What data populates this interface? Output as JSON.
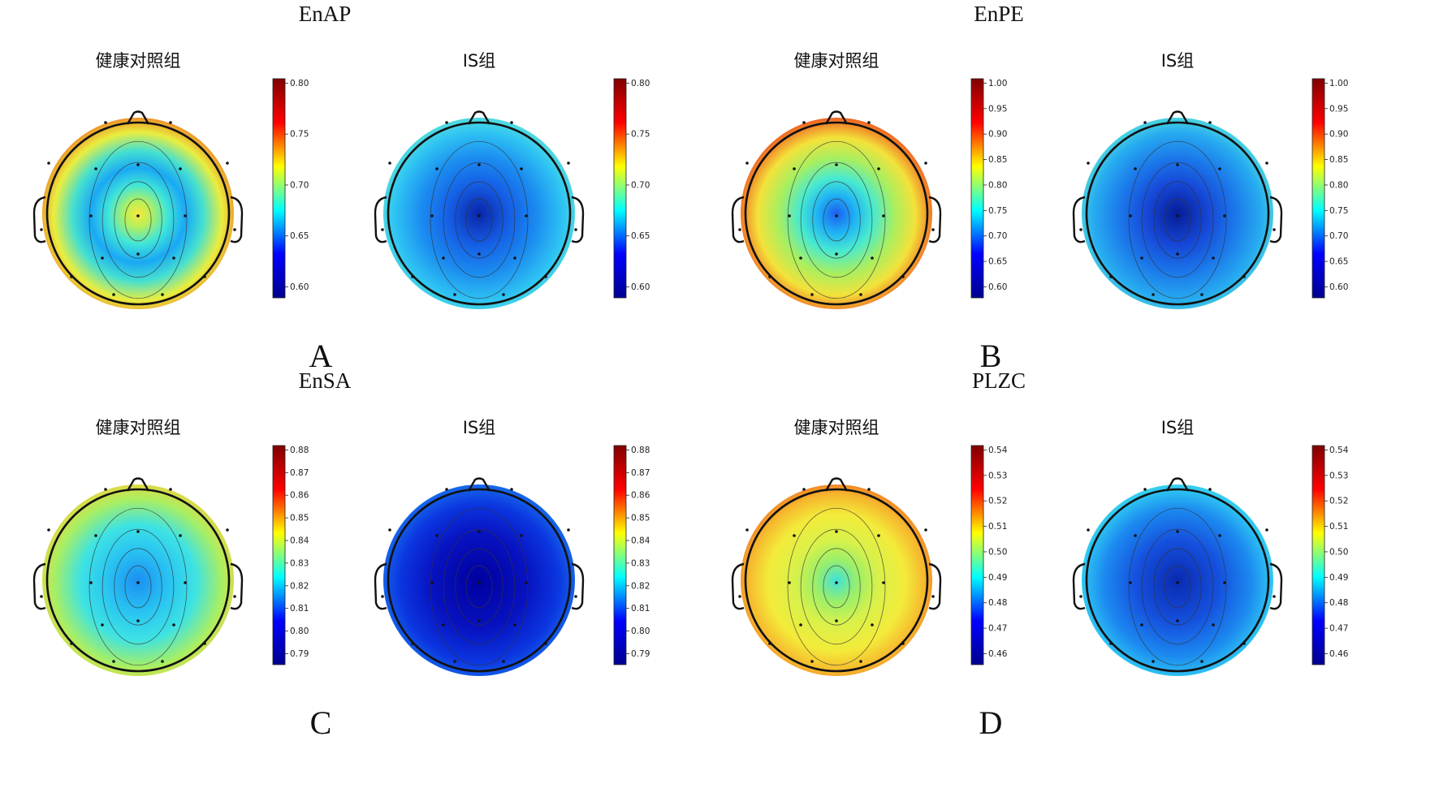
{
  "colormap": [
    "#00008f",
    "#0000ff",
    "#00ffff",
    "#ffff00",
    "#ff0000",
    "#800000"
  ],
  "panels": [
    {
      "letter": "A",
      "title": "EnAP",
      "ticks": [
        "0.80",
        "0.75",
        "0.70",
        "0.65",
        "0.60"
      ],
      "maps": [
        {
          "group": "健康对照组",
          "color_stops": [
            {
              "v": 0.0,
              "c": "#f7e93c"
            },
            {
              "v": 0.12,
              "c": "#b8f05a"
            },
            {
              "v": 0.28,
              "c": "#40e6d8"
            },
            {
              "v": 0.45,
              "c": "#1aa8f5"
            },
            {
              "v": 0.62,
              "c": "#45e0d0"
            },
            {
              "v": 0.8,
              "c": "#e9ee3f"
            },
            {
              "v": 1.0,
              "c": "#f07020"
            }
          ]
        },
        {
          "group": "IS组",
          "color_stops": [
            {
              "v": 0.0,
              "c": "#0a24a8"
            },
            {
              "v": 0.3,
              "c": "#1560e6"
            },
            {
              "v": 0.55,
              "c": "#1b8cf0"
            },
            {
              "v": 0.8,
              "c": "#2ec3f3"
            },
            {
              "v": 1.0,
              "c": "#5fe6d6"
            }
          ]
        }
      ]
    },
    {
      "letter": "B",
      "title": "EnPE",
      "ticks": [
        "1.00",
        "0.95",
        "0.90",
        "0.85",
        "0.80",
        "0.75",
        "0.70",
        "0.65",
        "0.60"
      ],
      "maps": [
        {
          "group": "健康对照组",
          "color_stops": [
            {
              "v": 0.0,
              "c": "#1c5ff0"
            },
            {
              "v": 0.18,
              "c": "#1fb3f4"
            },
            {
              "v": 0.35,
              "c": "#48ead0"
            },
            {
              "v": 0.55,
              "c": "#a8ef60"
            },
            {
              "v": 0.75,
              "c": "#f3e23a"
            },
            {
              "v": 1.0,
              "c": "#ef3d1a"
            }
          ]
        },
        {
          "group": "IS组",
          "color_stops": [
            {
              "v": 0.0,
              "c": "#061c95"
            },
            {
              "v": 0.3,
              "c": "#1648d8"
            },
            {
              "v": 0.55,
              "c": "#1b78ea"
            },
            {
              "v": 0.8,
              "c": "#27acf0"
            },
            {
              "v": 1.0,
              "c": "#58e3d8"
            }
          ]
        }
      ]
    },
    {
      "letter": "C",
      "title": "EnSA",
      "ticks": [
        "0.88",
        "0.87",
        "0.86",
        "0.85",
        "0.84",
        "0.83",
        "0.82",
        "0.81",
        "0.80",
        "0.79"
      ],
      "maps": [
        {
          "group": "健康对照组",
          "color_stops": [
            {
              "v": 0.0,
              "c": "#1c8ff2"
            },
            {
              "v": 0.3,
              "c": "#29c4f2"
            },
            {
              "v": 0.55,
              "c": "#3ee3e3"
            },
            {
              "v": 0.8,
              "c": "#a9ef62"
            },
            {
              "v": 1.0,
              "c": "#f3d03a"
            }
          ]
        },
        {
          "group": "IS组",
          "color_stops": [
            {
              "v": 0.0,
              "c": "#00009e"
            },
            {
              "v": 0.45,
              "c": "#0712c0"
            },
            {
              "v": 0.75,
              "c": "#0b36e0"
            },
            {
              "v": 1.0,
              "c": "#1a78ee"
            }
          ]
        }
      ]
    },
    {
      "letter": "D",
      "title": "PLZC",
      "ticks": [
        "0.54",
        "0.53",
        "0.52",
        "0.51",
        "0.50",
        "0.49",
        "0.48",
        "0.47",
        "0.46"
      ],
      "maps": [
        {
          "group": "健康对照组",
          "color_stops": [
            {
              "v": 0.0,
              "c": "#3fe0d9"
            },
            {
              "v": 0.2,
              "c": "#9aef6a"
            },
            {
              "v": 0.4,
              "c": "#d8f14a"
            },
            {
              "v": 0.65,
              "c": "#f3eb3a"
            },
            {
              "v": 0.85,
              "c": "#f6b52d"
            },
            {
              "v": 1.0,
              "c": "#ef6d22"
            }
          ]
        },
        {
          "group": "IS组",
          "color_stops": [
            {
              "v": 0.0,
              "c": "#0a2ab0"
            },
            {
              "v": 0.4,
              "c": "#1551de"
            },
            {
              "v": 0.7,
              "c": "#1c8af0"
            },
            {
              "v": 0.9,
              "c": "#2ec6f2"
            },
            {
              "v": 1.0,
              "c": "#4fe1e0"
            }
          ]
        }
      ]
    }
  ]
}
